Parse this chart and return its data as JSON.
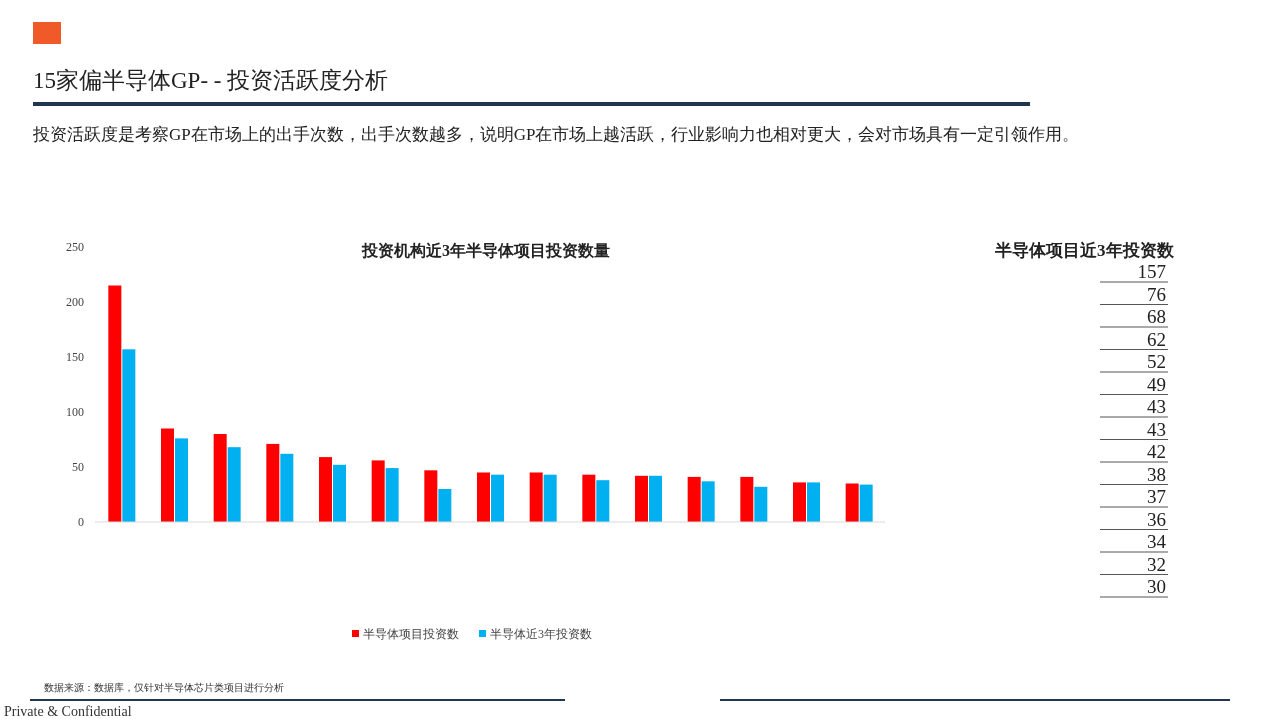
{
  "chart_data": [
    {
      "type": "other",
      "title": "15家偏半导体GP- - 投资活跃度分析",
      "annotations": [
        "投资活跃度是考察GP在市场上的出手次数，出手次数越多，说明GP在市场上越活跃，行业影响力也相对更大，会对市场具有一定引领作用。",
        "数据来源：数据库，仅针对半导体芯片类项目进行分析",
        "Private & Confidential"
      ]
    },
    {
      "type": "bar",
      "title": "投资机构近3年半导体项目投资数量",
      "categories": [
        null,
        null,
        null,
        null,
        null,
        null,
        null,
        null,
        null,
        null,
        null,
        null,
        null,
        null,
        null
      ],
      "series": [
        {
          "name": "半导体项目投资数",
          "color": "#ff0000",
          "values": [
            215,
            85,
            80,
            71,
            59,
            56,
            47,
            45,
            45,
            43,
            42,
            41,
            41,
            36,
            35
          ]
        },
        {
          "name": "半导体近3年投资数",
          "color": "#00b0f0",
          "values": [
            157,
            76,
            68,
            62,
            52,
            49,
            30,
            43,
            43,
            38,
            42,
            37,
            32,
            36,
            34
          ]
        }
      ],
      "ylim": [
        0,
        250
      ],
      "yticks": [
        0,
        50,
        100,
        150,
        200,
        250
      ],
      "grid": false,
      "legend": "bottom"
    },
    {
      "type": "other",
      "title": "半导体项目近3年投资数",
      "categories": [
        null,
        null,
        null,
        null,
        null,
        null,
        null,
        null,
        null,
        null,
        null,
        null,
        null,
        null,
        null
      ],
      "values": [
        157,
        76,
        68,
        62,
        52,
        49,
        43,
        43,
        42,
        38,
        37,
        36,
        34,
        32,
        30
      ],
      "data_labels": true
    }
  ]
}
